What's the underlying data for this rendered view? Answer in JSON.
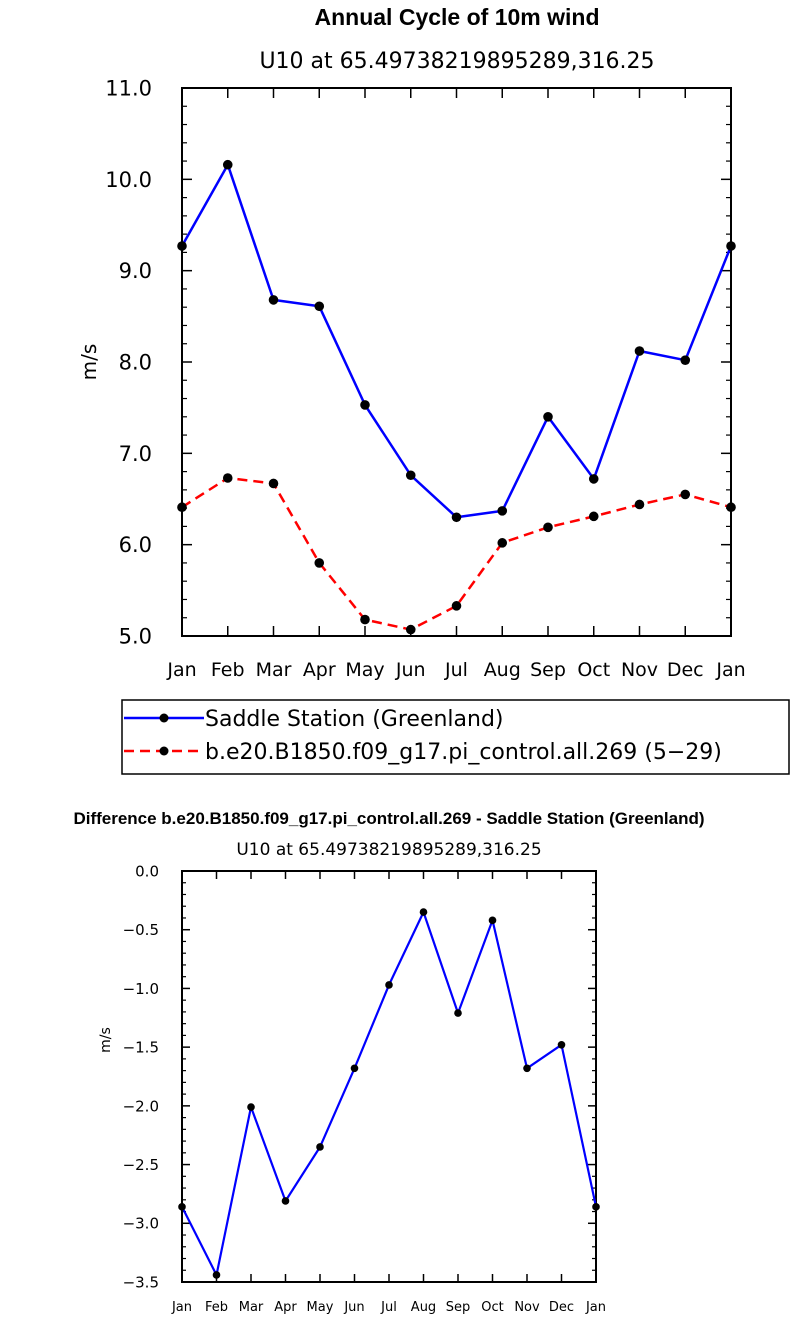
{
  "chart_data": [
    {
      "type": "line",
      "title": "Annual Cycle of 10m wind",
      "subtitle": "U10 at 65.49738219895289,316.25",
      "xlabel": "",
      "ylabel": "m/s",
      "categories": [
        "Jan",
        "Feb",
        "Mar",
        "Apr",
        "May",
        "Jun",
        "Jul",
        "Aug",
        "Sep",
        "Oct",
        "Nov",
        "Dec",
        "Jan"
      ],
      "ylim": [
        5.0,
        11.0
      ],
      "yticks": [
        "5.0",
        "6.0",
        "7.0",
        "8.0",
        "9.0",
        "10.0",
        "11.0"
      ],
      "series": [
        {
          "name": "Saddle Station (Greenland)",
          "color": "#0000ff",
          "dash": "solid",
          "values": [
            9.27,
            10.16,
            8.68,
            8.61,
            7.53,
            6.76,
            6.3,
            6.37,
            7.4,
            6.72,
            8.12,
            8.02,
            9.27
          ]
        },
        {
          "name": "b.e20.B1850.f09_g17.pi_control.all.269 (5−29)",
          "color": "#ff0000",
          "dash": "dashed",
          "values": [
            6.41,
            6.73,
            6.67,
            5.8,
            5.18,
            5.07,
            5.33,
            6.02,
            6.19,
            6.31,
            6.44,
            6.55,
            6.41
          ]
        }
      ],
      "legend": "bottom"
    },
    {
      "type": "line",
      "title": "Difference b.e20.B1850.f09_g17.pi_control.all.269 - Saddle Station (Greenland)",
      "subtitle": "U10 at 65.49738219895289,316.25",
      "xlabel": "",
      "ylabel": "m/s",
      "categories": [
        "Jan",
        "Feb",
        "Mar",
        "Apr",
        "May",
        "Jun",
        "Jul",
        "Aug",
        "Sep",
        "Oct",
        "Nov",
        "Dec",
        "Jan"
      ],
      "ylim": [
        -3.5,
        0.0
      ],
      "yticks": [
        "−3.5",
        "−3.0",
        "−2.5",
        "−2.0",
        "−1.5",
        "−1.0",
        "−0.5",
        "0.0"
      ],
      "series": [
        {
          "name": "Difference",
          "color": "#0000ff",
          "dash": "solid",
          "values": [
            -2.86,
            -3.44,
            -2.01,
            -2.81,
            -2.35,
            -1.68,
            -0.97,
            -0.35,
            -1.21,
            -0.42,
            -1.68,
            -1.48,
            -2.86
          ]
        }
      ]
    }
  ]
}
